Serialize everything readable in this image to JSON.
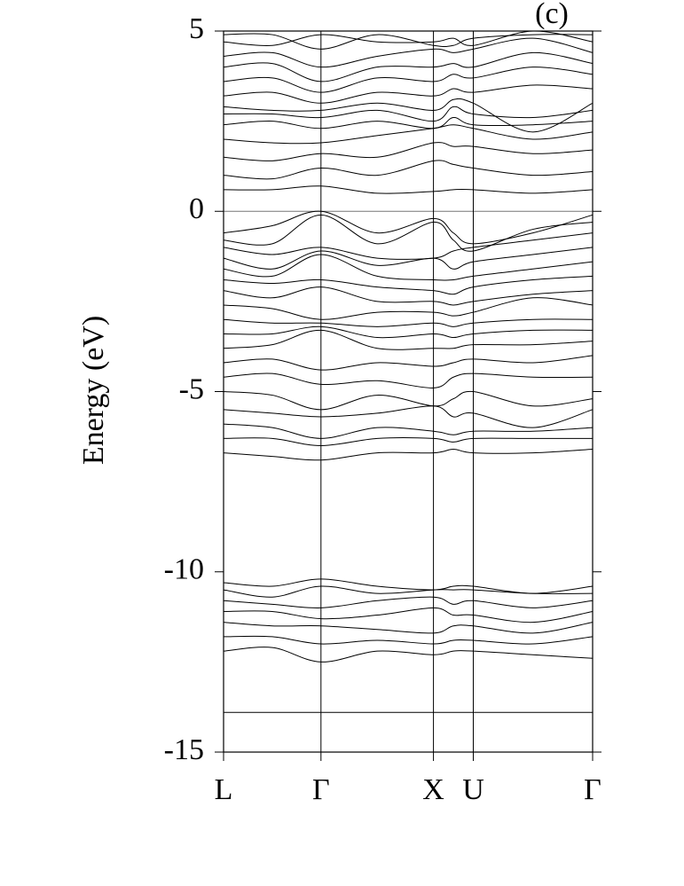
{
  "chart_data": {
    "type": "line",
    "annotation": "(c)",
    "y_label": "Energy (eV)",
    "color": "#000000",
    "x": [
      0,
      0.433,
      0.866,
      1.366,
      1.866,
      2.043,
      2.22,
      2.75,
      3.281
    ],
    "xlim": [
      0,
      3.281
    ],
    "xticks": [
      {
        "value": 0,
        "label": "L"
      },
      {
        "value": 0.866,
        "label": "Γ"
      },
      {
        "value": 1.866,
        "label": "X"
      },
      {
        "value": 2.22,
        "label": "U"
      },
      {
        "value": 3.281,
        "label": "Γ"
      }
    ],
    "xgrid": true,
    "ylim": [
      -15,
      5
    ],
    "yticks": [
      -15,
      -10,
      -5,
      0,
      5
    ],
    "zero_line": true,
    "series": [
      {
        "values": [
          0.6,
          0.6,
          0.7,
          0.5,
          0.55,
          0.6,
          0.6,
          0.5,
          0.6
        ]
      },
      {
        "values": [
          1.0,
          0.9,
          1.2,
          1.0,
          1.4,
          1.3,
          1.2,
          1.0,
          1.1
        ]
      },
      {
        "values": [
          1.5,
          1.4,
          1.6,
          1.5,
          1.9,
          1.8,
          1.8,
          1.6,
          1.7
        ]
      },
      {
        "values": [
          2.0,
          1.9,
          1.9,
          2.1,
          2.3,
          2.4,
          2.3,
          2.0,
          2.2
        ]
      },
      {
        "values": [
          2.4,
          2.5,
          2.3,
          2.5,
          2.3,
          2.6,
          2.4,
          2.4,
          2.5
        ]
      },
      {
        "values": [
          2.7,
          2.7,
          2.6,
          2.8,
          2.5,
          2.9,
          2.7,
          2.6,
          2.8
        ]
      },
      {
        "values": [
          2.9,
          2.8,
          2.8,
          3.0,
          2.8,
          3.1,
          3.0,
          2.2,
          3.0
        ]
      },
      {
        "values": [
          3.2,
          3.3,
          3.0,
          3.3,
          3.2,
          3.4,
          3.3,
          3.5,
          3.4
        ]
      },
      {
        "values": [
          3.6,
          3.7,
          3.3,
          3.7,
          3.6,
          3.8,
          3.7,
          4.0,
          3.8
        ]
      },
      {
        "values": [
          4.0,
          4.1,
          3.6,
          4.0,
          4.0,
          4.1,
          4.0,
          4.4,
          4.1
        ]
      },
      {
        "values": [
          4.3,
          4.4,
          4.0,
          4.3,
          4.5,
          4.4,
          4.5,
          4.8,
          4.4
        ]
      },
      {
        "values": [
          4.7,
          4.6,
          4.9,
          4.7,
          4.7,
          4.8,
          4.6,
          5.0,
          4.7
        ]
      },
      {
        "values": [
          4.9,
          4.9,
          4.5,
          4.9,
          4.6,
          4.6,
          4.8,
          4.9,
          4.9
        ]
      },
      {
        "values": [
          -0.6,
          -0.4,
          0.0,
          -0.6,
          -0.2,
          -0.6,
          -0.9,
          -0.6,
          -0.1
        ]
      },
      {
        "values": [
          -0.8,
          -0.9,
          -0.1,
          -0.9,
          -0.3,
          -0.8,
          -1.1,
          -0.5,
          -0.3
        ]
      },
      {
        "values": [
          -1.0,
          -1.2,
          -1.0,
          -1.3,
          -1.3,
          -1.1,
          -1.0,
          -0.8,
          -0.6
        ]
      },
      {
        "values": [
          -1.3,
          -1.6,
          -1.1,
          -1.5,
          -1.3,
          -1.6,
          -1.4,
          -1.2,
          -1.0
        ]
      },
      {
        "values": [
          -1.6,
          -1.8,
          -1.2,
          -1.8,
          -1.9,
          -1.9,
          -1.8,
          -1.6,
          -1.4
        ]
      },
      {
        "values": [
          -1.9,
          -2.0,
          -1.9,
          -2.1,
          -2.2,
          -2.3,
          -2.1,
          -1.9,
          -1.8
        ]
      },
      {
        "values": [
          -2.2,
          -2.4,
          -2.1,
          -2.5,
          -2.5,
          -2.6,
          -2.5,
          -2.3,
          -2.2
        ]
      },
      {
        "values": [
          -2.6,
          -2.7,
          -3.0,
          -2.8,
          -2.8,
          -2.9,
          -2.8,
          -2.4,
          -2.6
        ]
      },
      {
        "values": [
          -3.0,
          -3.1,
          -3.1,
          -3.2,
          -3.1,
          -3.2,
          -3.1,
          -3.0,
          -3.0
        ]
      },
      {
        "values": [
          -3.4,
          -3.4,
          -3.2,
          -3.5,
          -3.4,
          -3.5,
          -3.4,
          -3.3,
          -3.3
        ]
      },
      {
        "values": [
          -3.8,
          -3.7,
          -3.3,
          -3.8,
          -3.8,
          -3.8,
          -3.7,
          -3.7,
          -3.6
        ]
      },
      {
        "values": [
          -4.2,
          -4.1,
          -4.4,
          -4.2,
          -4.3,
          -4.2,
          -4.1,
          -4.2,
          -4.0
        ]
      },
      {
        "values": [
          -4.6,
          -4.5,
          -4.8,
          -4.7,
          -4.9,
          -4.6,
          -4.5,
          -4.6,
          -4.6
        ]
      },
      {
        "values": [
          -5.0,
          -5.1,
          -5.5,
          -5.1,
          -5.4,
          -5.2,
          -5.0,
          -5.4,
          -5.2
        ]
      },
      {
        "values": [
          -5.5,
          -5.6,
          -5.7,
          -5.6,
          -5.4,
          -5.7,
          -5.6,
          -6.0,
          -5.5
        ]
      },
      {
        "values": [
          -5.9,
          -6.0,
          -6.3,
          -6.0,
          -6.1,
          -6.2,
          -6.1,
          -6.1,
          -6.0
        ]
      },
      {
        "values": [
          -6.3,
          -6.3,
          -6.5,
          -6.3,
          -6.3,
          -6.4,
          -6.3,
          -6.3,
          -6.3
        ]
      },
      {
        "values": [
          -6.7,
          -6.8,
          -6.9,
          -6.7,
          -6.7,
          -6.6,
          -6.7,
          -6.7,
          -6.6
        ]
      },
      {
        "values": [
          -10.3,
          -10.4,
          -10.2,
          -10.4,
          -10.5,
          -10.4,
          -10.4,
          -10.6,
          -10.4
        ]
      },
      {
        "values": [
          -10.5,
          -10.7,
          -10.4,
          -10.6,
          -10.5,
          -10.5,
          -10.5,
          -10.6,
          -10.6
        ]
      },
      {
        "values": [
          -10.8,
          -10.9,
          -11.0,
          -10.8,
          -10.7,
          -10.9,
          -10.8,
          -11.0,
          -10.8
        ]
      },
      {
        "values": [
          -11.1,
          -11.1,
          -11.3,
          -11.2,
          -11.0,
          -11.2,
          -11.2,
          -11.4,
          -11.1
        ]
      },
      {
        "values": [
          -11.4,
          -11.5,
          -11.5,
          -11.6,
          -11.7,
          -11.5,
          -11.5,
          -11.7,
          -11.4
        ]
      },
      {
        "values": [
          -11.8,
          -11.8,
          -12.0,
          -11.9,
          -12.0,
          -11.9,
          -11.9,
          -12.0,
          -11.8
        ]
      },
      {
        "values": [
          -12.2,
          -12.1,
          -12.5,
          -12.2,
          -12.3,
          -12.2,
          -12.2,
          -12.3,
          -12.4
        ]
      },
      {
        "values": [
          -13.9,
          -13.9,
          -13.9,
          -13.9,
          -13.9,
          -13.9,
          -13.9,
          -13.9,
          -13.9
        ]
      }
    ]
  }
}
